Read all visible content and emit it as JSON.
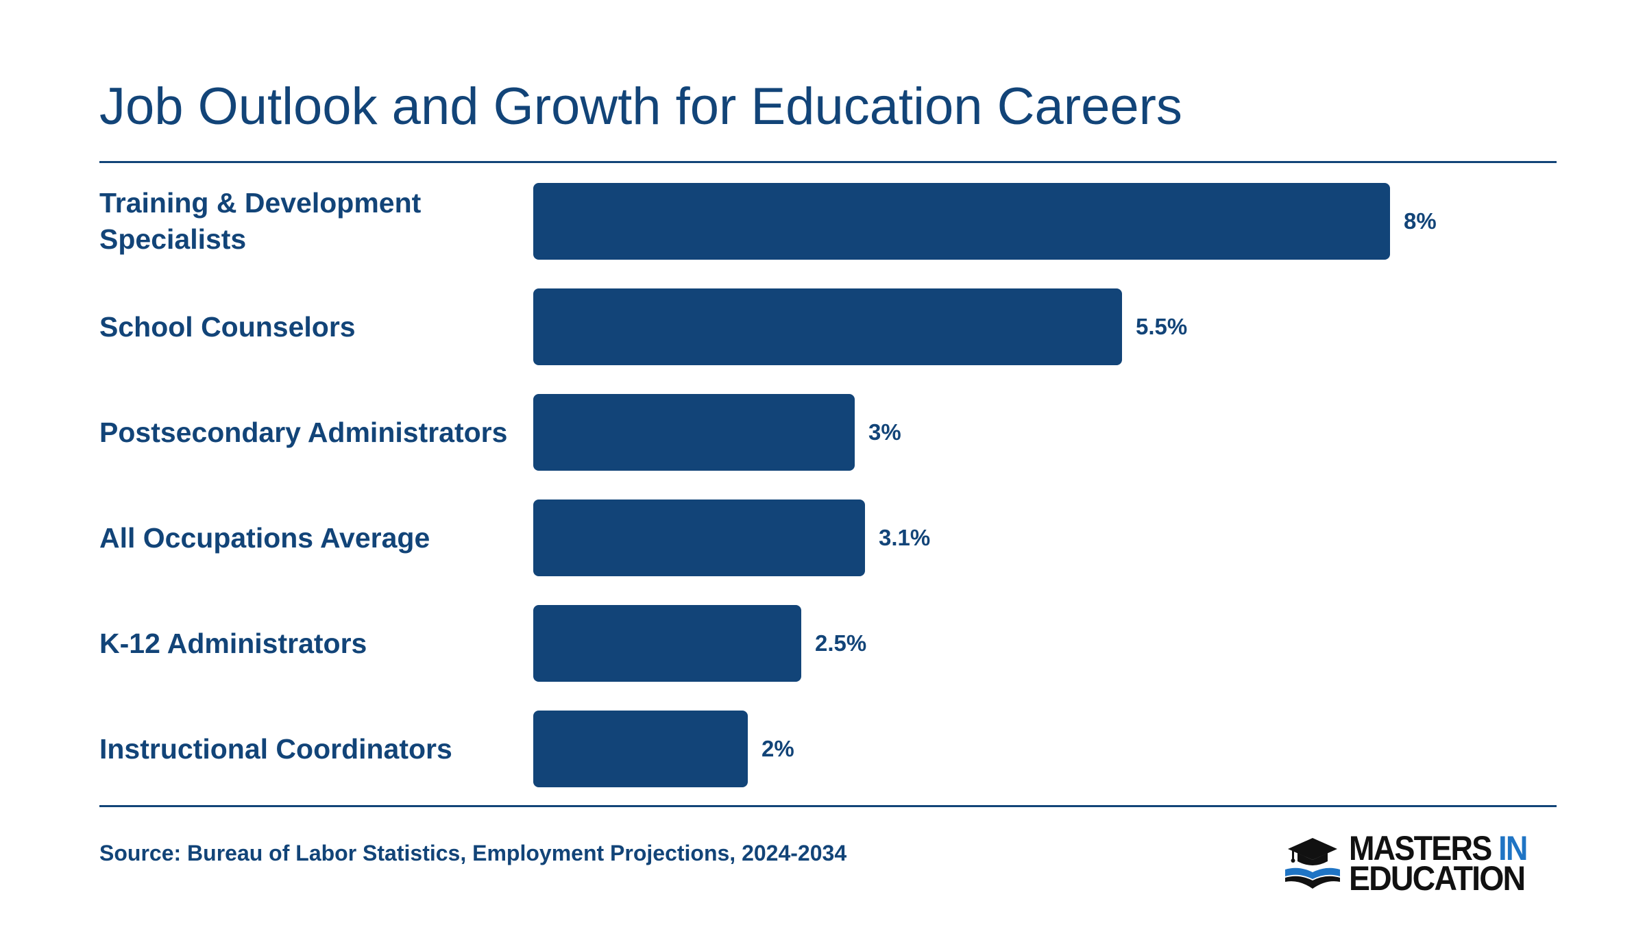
{
  "title": "Job Outlook and Growth for Education Careers",
  "source": "Source: Bureau of Labor Statistics, Employment Projections, 2024-2034",
  "logo": {
    "line1": "MASTERS",
    "line1_accent": "IN",
    "line2": "EDUCATION",
    "icon": "graduation-cap-book-icon",
    "accent_color": "#1f74c4",
    "text_color": "#111111"
  },
  "colors": {
    "bar": "#124478",
    "text": "#124478"
  },
  "chart_data": {
    "type": "bar",
    "orientation": "horizontal",
    "title": "Job Outlook and Growth for Education Careers",
    "categories": [
      "Training & Development Specialists",
      "School Counselors",
      "Postsecondary Administrators",
      "All Occupations Average",
      "K-12 Administrators",
      "Instructional Coordinators"
    ],
    "values": [
      8,
      5.5,
      3,
      3.1,
      2.5,
      2
    ],
    "value_labels": [
      "8%",
      "5.5%",
      "3%",
      "3.1%",
      "2.5%",
      "2%"
    ],
    "unit": "%",
    "xlim": [
      0,
      8
    ],
    "grid": false,
    "legend": "none"
  }
}
